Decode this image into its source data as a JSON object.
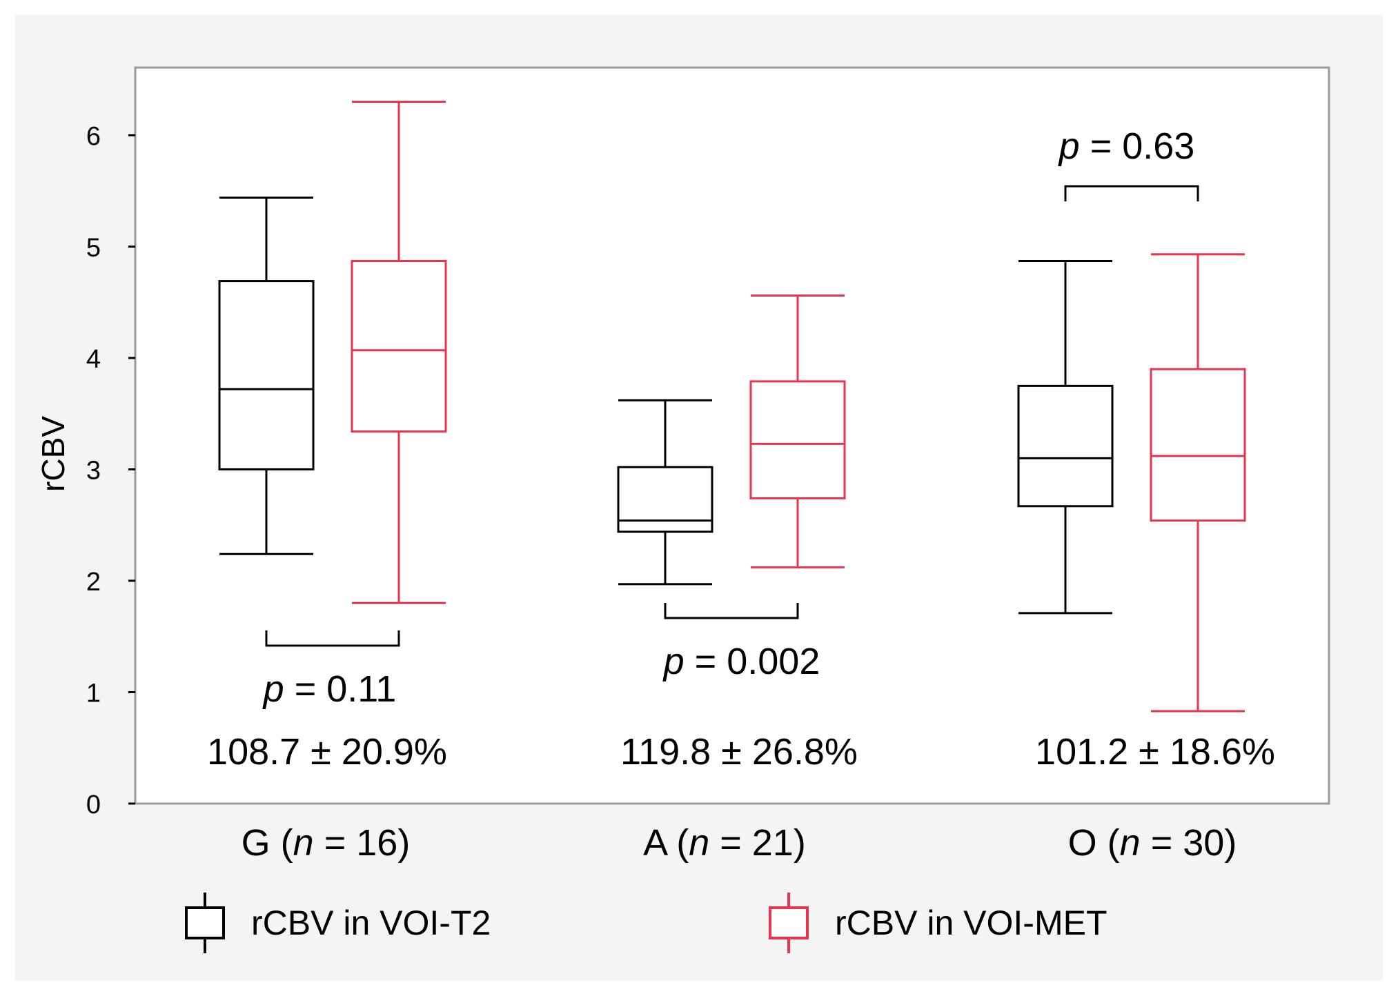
{
  "colors": {
    "background": "#f4f4f4",
    "plot_background": "#ffffff",
    "frame": "#9a9a9a",
    "series_t2": "#000000",
    "series_met": "#e8344f"
  },
  "chart_data": {
    "type": "box",
    "title": "",
    "xlabel": "",
    "ylabel": "rCBV",
    "ylim": [
      0,
      6.6
    ],
    "yticks": [
      0,
      1,
      2,
      3,
      4,
      5,
      6
    ],
    "ytick_labels": [
      "0",
      "1",
      "2",
      "3",
      "4",
      "5",
      "6"
    ],
    "grid": false,
    "legend_position": "bottom",
    "categories": [
      {
        "label_prefix": "G (",
        "n_label": "n",
        "eq_label": " = 16)",
        "pct_label": "108.7 ± 20.9%",
        "p_prefix": "p",
        "p_value": " = 0.11",
        "bracket_side": "below"
      },
      {
        "label_prefix": "A (",
        "n_label": "n",
        "eq_label": " = 21)",
        "pct_label": "119.8 ± 26.8%",
        "p_prefix": "p",
        "p_value": " = 0.002",
        "bracket_side": "below"
      },
      {
        "label_prefix": "O (",
        "n_label": "n",
        "eq_label": " = 30)",
        "pct_label": "101.2 ± 18.6%",
        "p_prefix": "p",
        "p_value": " = 0.63",
        "bracket_side": "above"
      }
    ],
    "series": [
      {
        "name": "rCBV in VOI-T2",
        "color": "#000000",
        "boxes": [
          {
            "whisker_low": 2.24,
            "q1": 3.0,
            "median": 3.72,
            "q3": 4.69,
            "whisker_high": 5.44
          },
          {
            "whisker_low": 1.97,
            "q1": 2.44,
            "median": 2.54,
            "q3": 3.02,
            "whisker_high": 3.62
          },
          {
            "whisker_low": 1.71,
            "q1": 2.67,
            "median": 3.1,
            "q3": 3.75,
            "whisker_high": 4.87
          }
        ]
      },
      {
        "name": "rCBV in VOI-MET",
        "color": "#e8344f",
        "boxes": [
          {
            "whisker_low": 1.8,
            "q1": 3.34,
            "median": 4.07,
            "q3": 4.87,
            "whisker_high": 6.3
          },
          {
            "whisker_low": 2.12,
            "q1": 2.74,
            "median": 3.23,
            "q3": 3.79,
            "whisker_high": 4.56
          },
          {
            "whisker_low": 0.83,
            "q1": 2.54,
            "median": 3.12,
            "q3": 3.9,
            "whisker_high": 4.93
          }
        ]
      }
    ]
  }
}
